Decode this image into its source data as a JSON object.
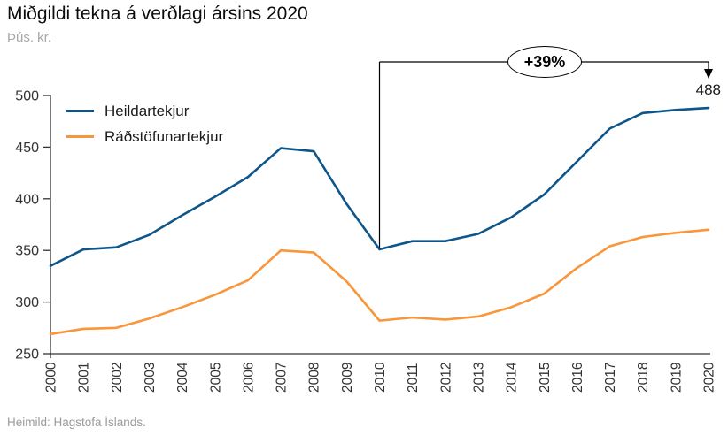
{
  "header": {
    "title": "Miðgildi tekna á verðlagi ársins 2020",
    "subtitle": "Þús. kr."
  },
  "footer": {
    "source": "Heimild: Hagstofa Íslands."
  },
  "annotation": {
    "percent_label": "+39%",
    "end_value_label": "488",
    "from_year": 2010,
    "to_year": 2020
  },
  "colors": {
    "heildartekjur": "#0E568A",
    "radstofunartekjur": "#F8963C",
    "annotation_line": "#000000",
    "axis_line": "#333333",
    "tick_label": "#333333"
  },
  "chart_data": {
    "type": "line",
    "title": "Miðgildi tekna á verðlagi ársins 2020",
    "ylabel": "Þús. kr.",
    "xlabel": "",
    "grid": false,
    "legend_position": "top-left-inside",
    "ylim": [
      250,
      500
    ],
    "yticks": [
      250,
      300,
      350,
      400,
      450,
      500
    ],
    "x": [
      2000,
      2001,
      2002,
      2003,
      2004,
      2005,
      2006,
      2007,
      2008,
      2009,
      2010,
      2011,
      2012,
      2013,
      2014,
      2015,
      2016,
      2017,
      2018,
      2019,
      2020
    ],
    "series": [
      {
        "name": "Heildartekjur",
        "color": "#0E568A",
        "values": [
          335,
          351,
          353,
          365,
          384,
          402,
          421,
          449,
          446,
          395,
          351,
          359,
          359,
          366,
          382,
          404,
          436,
          468,
          483,
          486,
          488
        ]
      },
      {
        "name": "Ráðstöfunartekjur",
        "color": "#F8963C",
        "values": [
          269,
          274,
          275,
          284,
          295,
          307,
          321,
          350,
          348,
          320,
          282,
          285,
          283,
          286,
          295,
          308,
          333,
          354,
          363,
          367,
          370
        ]
      }
    ],
    "annotations": [
      {
        "type": "percent-change",
        "label": "+39%",
        "from_year": 2010,
        "to_year": 2020,
        "end_label": "488"
      }
    ]
  }
}
